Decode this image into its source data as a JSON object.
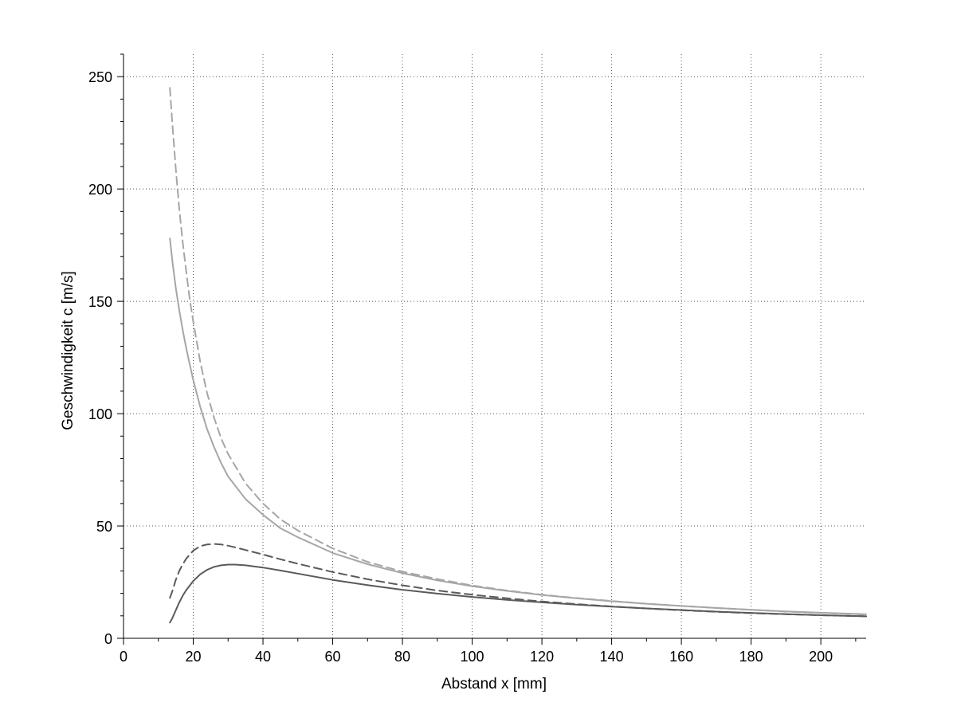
{
  "chart_data": {
    "type": "line",
    "title": "",
    "xlabel": "Abstand  x [mm]",
    "ylabel": "Geschwindigkeit c [m/s]",
    "xlim": [
      0,
      213
    ],
    "ylim": [
      0,
      260
    ],
    "xticks": [
      0,
      20,
      40,
      60,
      80,
      100,
      120,
      140,
      160,
      180,
      200
    ],
    "yticks": [
      0,
      50,
      100,
      150,
      200,
      250
    ],
    "grid": true,
    "legend": "none",
    "series": [
      {
        "color": "#a6a6a6",
        "dash": "dashed",
        "x": [
          13.3,
          14,
          15,
          16,
          17,
          18,
          19,
          20,
          22,
          24,
          26,
          28,
          30,
          35,
          40,
          45,
          50,
          60,
          70,
          80,
          90,
          100,
          110,
          120,
          130,
          140,
          150,
          160,
          170,
          180,
          190,
          200,
          213
        ],
        "y": [
          245,
          229,
          209,
          191,
          176,
          163,
          151,
          141,
          123,
          109,
          98,
          89,
          82,
          69,
          60,
          53,
          48,
          40,
          34,
          29.7,
          26.4,
          23.5,
          21.3,
          19.4,
          17.9,
          16.6,
          15.4,
          14.4,
          13.5,
          12.7,
          11.9,
          11.3,
          10.6
        ]
      },
      {
        "color": "#a6a6a6",
        "dash": "solid",
        "x": [
          13.3,
          14,
          15,
          16,
          17,
          18,
          19,
          20,
          22,
          24,
          26,
          28,
          30,
          35,
          40,
          45,
          50,
          60,
          70,
          80,
          90,
          100,
          110,
          120,
          130,
          140,
          150,
          160,
          170,
          180,
          190,
          200,
          213
        ],
        "y": [
          178,
          168,
          156,
          146,
          137,
          129,
          122,
          115,
          103,
          93,
          85,
          78,
          72,
          62,
          55,
          49,
          45,
          38,
          33,
          29,
          25.8,
          23.2,
          21.1,
          19.3,
          17.8,
          16.5,
          15.4,
          14.4,
          13.5,
          12.7,
          12,
          11.4,
          10.7
        ]
      },
      {
        "color": "#5a5a5a",
        "dash": "dashed",
        "x": [
          13.3,
          14,
          15,
          16,
          17,
          18,
          20,
          22,
          24,
          26,
          28,
          30,
          32,
          35,
          40,
          45,
          50,
          60,
          70,
          80,
          90,
          100,
          110,
          120,
          130,
          140,
          150,
          160,
          170,
          180,
          190,
          200,
          213
        ],
        "y": [
          18,
          21,
          26,
          30,
          33,
          35.5,
          39,
          41,
          41.8,
          42,
          41.8,
          41.2,
          40.5,
          39.3,
          37.3,
          35.2,
          33.2,
          29.5,
          26.3,
          23.6,
          21.3,
          19.4,
          17.8,
          16.4,
          15.2,
          14.2,
          13.3,
          12.5,
          11.8,
          11.2,
          10.7,
          10.3,
          9.8
        ]
      },
      {
        "color": "#5a5a5a",
        "dash": "solid",
        "x": [
          13.3,
          14,
          15,
          16,
          17,
          18,
          20,
          22,
          24,
          26,
          28,
          30,
          32,
          35,
          40,
          45,
          50,
          60,
          70,
          80,
          90,
          100,
          110,
          120,
          130,
          140,
          150,
          160,
          170,
          180,
          190,
          200,
          213
        ],
        "y": [
          7,
          9,
          12.5,
          16,
          19,
          21.5,
          25.5,
          28.5,
          30.5,
          31.8,
          32.5,
          32.8,
          32.8,
          32.5,
          31.5,
          30.2,
          28.8,
          26,
          23.7,
          21.6,
          19.9,
          18.4,
          17.1,
          16,
          15,
          14.1,
          13.3,
          12.6,
          11.9,
          11.3,
          10.8,
          10.3,
          9.8
        ]
      }
    ]
  }
}
